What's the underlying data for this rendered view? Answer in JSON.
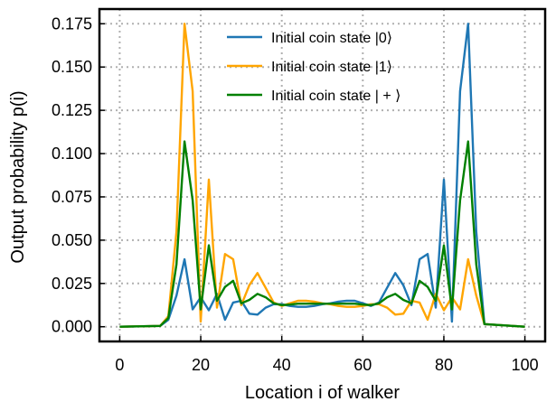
{
  "chart_data": {
    "type": "line",
    "title": "",
    "xlabel": "Location i of walker",
    "ylabel": "Output probability p(i)",
    "xlim": [
      -5,
      105
    ],
    "ylim": [
      -0.0085,
      0.1835
    ],
    "xticks": [
      0,
      20,
      40,
      60,
      80,
      100
    ],
    "xtick_labels": [
      "0",
      "20",
      "40",
      "60",
      "80",
      "100"
    ],
    "yticks": [
      0.0,
      0.025,
      0.05,
      0.075,
      0.1,
      0.125,
      0.15,
      0.175
    ],
    "ytick_labels": [
      "0.000",
      "0.025",
      "0.050",
      "0.075",
      "0.100",
      "0.125",
      "0.150",
      "0.175"
    ],
    "grid": true,
    "grid_style": "dotted",
    "legend_position": "top-center",
    "series": [
      {
        "name": "Initial coin state |0⟩",
        "color": "#1f77b4",
        "x": [
          0,
          10,
          12,
          14,
          16,
          18,
          20,
          22,
          24,
          26,
          28,
          30,
          32,
          34,
          36,
          38,
          40,
          42,
          44,
          46,
          48,
          50,
          52,
          54,
          56,
          58,
          60,
          62,
          64,
          66,
          68,
          70,
          72,
          74,
          76,
          78,
          80,
          82,
          84,
          86,
          88,
          90,
          100
        ],
        "y": [
          0,
          0.0005,
          0.004,
          0.018,
          0.039,
          0.01,
          0.017,
          0.0095,
          0.019,
          0.004,
          0.014,
          0.015,
          0.0075,
          0.007,
          0.011,
          0.013,
          0.013,
          0.012,
          0.0115,
          0.0115,
          0.012,
          0.013,
          0.0135,
          0.0145,
          0.015,
          0.015,
          0.0135,
          0.012,
          0.014,
          0.0225,
          0.031,
          0.024,
          0.0125,
          0.039,
          0.042,
          0.011,
          0.085,
          0.003,
          0.136,
          0.175,
          0.055,
          0.0015,
          0
        ]
      },
      {
        "name": "Initial coin state |1⟩",
        "color": "#ffa500",
        "x": [
          0,
          10,
          12,
          14,
          16,
          18,
          20,
          22,
          24,
          26,
          28,
          30,
          32,
          34,
          36,
          38,
          40,
          42,
          44,
          46,
          48,
          50,
          52,
          54,
          56,
          58,
          60,
          62,
          64,
          66,
          68,
          70,
          72,
          74,
          76,
          78,
          80,
          82,
          84,
          86,
          88,
          90,
          100
        ],
        "y": [
          0,
          0.0005,
          0.006,
          0.055,
          0.175,
          0.136,
          0.003,
          0.085,
          0.011,
          0.042,
          0.039,
          0.0125,
          0.024,
          0.031,
          0.0225,
          0.014,
          0.012,
          0.0135,
          0.015,
          0.015,
          0.0145,
          0.0135,
          0.013,
          0.012,
          0.0115,
          0.0115,
          0.012,
          0.013,
          0.013,
          0.011,
          0.007,
          0.0075,
          0.015,
          0.014,
          0.004,
          0.019,
          0.0095,
          0.017,
          0.01,
          0.039,
          0.018,
          0.0015,
          0
        ]
      },
      {
        "name": "Initial coin state | + ⟩",
        "color": "#008000",
        "x": [
          0,
          10,
          12,
          14,
          16,
          18,
          20,
          22,
          24,
          26,
          28,
          30,
          32,
          34,
          36,
          38,
          40,
          42,
          44,
          46,
          48,
          50,
          52,
          54,
          56,
          58,
          60,
          62,
          64,
          66,
          68,
          70,
          72,
          74,
          76,
          78,
          80,
          82,
          84,
          86,
          88,
          90,
          100
        ],
        "y": [
          0,
          0.0005,
          0.005,
          0.036,
          0.107,
          0.073,
          0.01,
          0.047,
          0.015,
          0.023,
          0.0265,
          0.0135,
          0.0155,
          0.019,
          0.017,
          0.0135,
          0.0125,
          0.0128,
          0.0133,
          0.0133,
          0.0133,
          0.0133,
          0.0133,
          0.0133,
          0.0133,
          0.0133,
          0.0128,
          0.0125,
          0.0135,
          0.017,
          0.019,
          0.0155,
          0.0135,
          0.0265,
          0.023,
          0.015,
          0.047,
          0.01,
          0.073,
          0.107,
          0.036,
          0.0015,
          0
        ]
      }
    ]
  }
}
